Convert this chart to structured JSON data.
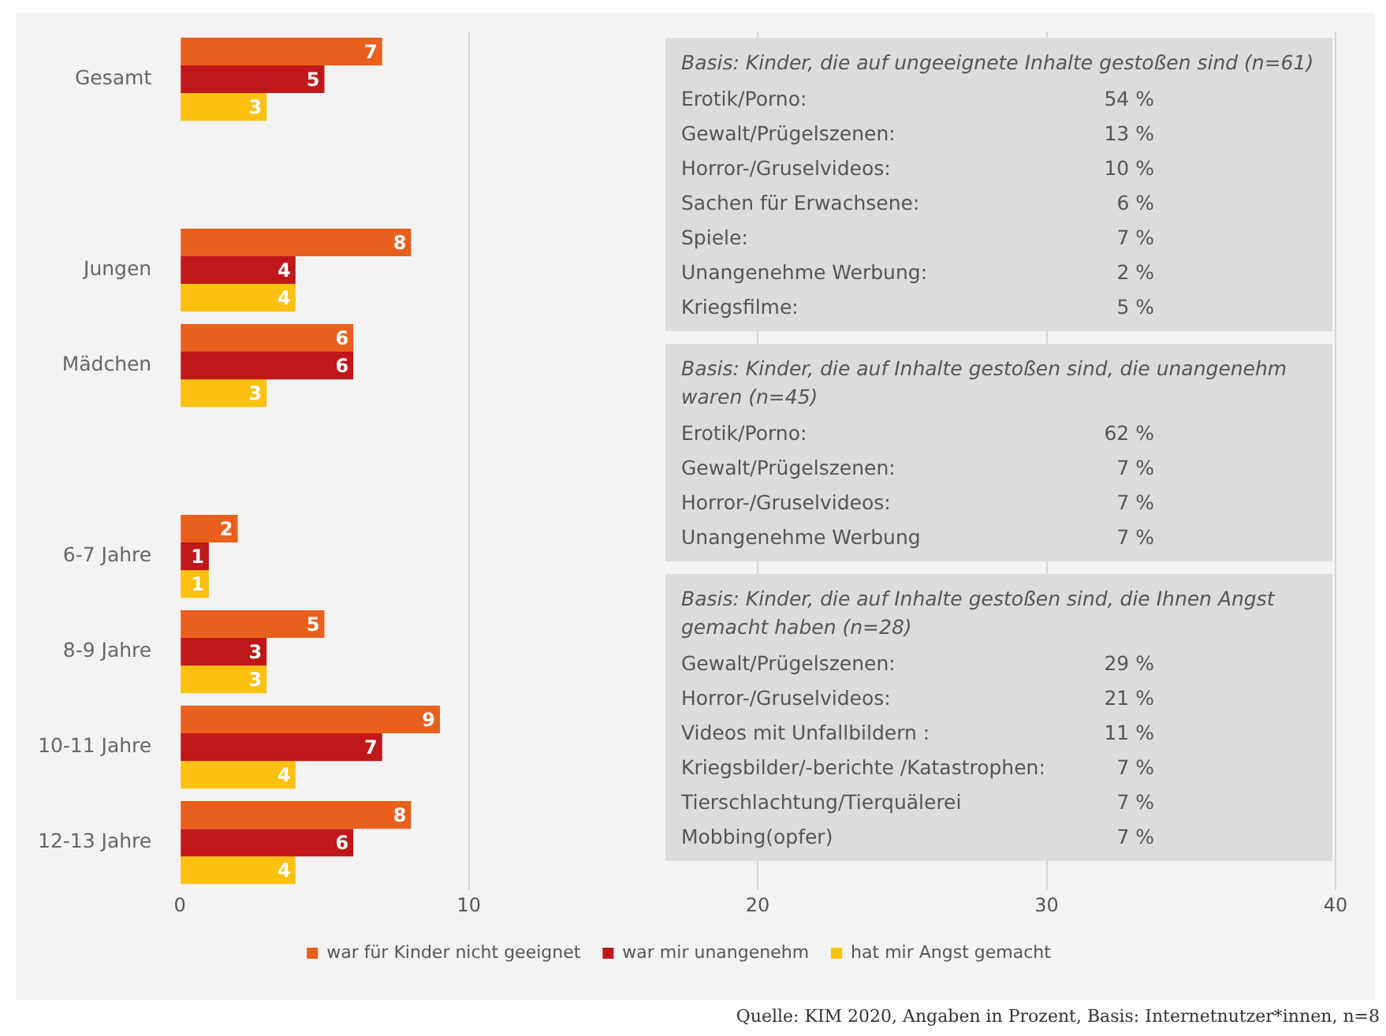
{
  "chart_data": {
    "type": "bar",
    "orientation": "horizontal",
    "categories": [
      "Gesamt",
      null,
      "Jungen",
      "Mädchen",
      null,
      "6-7 Jahre",
      "8-9 Jahre",
      "10-11 Jahre",
      "12-13 Jahre"
    ],
    "series": [
      {
        "name": "war für Kinder nicht geeignet",
        "color": "#e8601c",
        "values": [
          7,
          null,
          8,
          6,
          null,
          2,
          5,
          9,
          8
        ]
      },
      {
        "name": "war mir unangenehm",
        "color": "#c0171b",
        "values": [
          5,
          null,
          4,
          6,
          null,
          1,
          3,
          7,
          6
        ]
      },
      {
        "name": "hat mir Angst gemacht",
        "color": "#fcc10f",
        "values": [
          3,
          null,
          4,
          3,
          null,
          1,
          3,
          4,
          4
        ]
      }
    ],
    "xlim": [
      0,
      40
    ],
    "xticks": [
      0,
      10,
      20,
      30,
      40
    ],
    "grid": "x",
    "legend": "bottom",
    "data_labels": true,
    "annotations": [
      "Basis: Kinder, die auf ungeeignete Inhalte gestoßen sind (n=61)\nErotik/Porno:\t54 %\nGewalt/Prügelszenen:\t13 %\nHorror-/Gruselvideos:\t10 %\nSachen für Erwachsene:\t6 %\nSpiele:\t7 %\nUnangenehme Werbung:\t2 %\nKriegsfilme:\t5 %",
      "Basis: Kinder, die auf Inhalte gestoßen sind, die unangenehm waren (n=45)\nErotik/Porno:\t62 %\nGewalt/Prügelszenen:\t7 %\nHorror-/Gruselvideos:\t7 %\nUnangenehme Werbung\t7 %",
      "Basis: Kinder, die auf Inhalte gestoßen sind, die Ihnen Angst gemacht haben (n=28)\nGewalt/Prügelszenen:\t29 %\nHorror-/Gruselvideos:\t21 %\nVideos mit Unfallbildern :\t11 %\nKriegsbilder/-berichte /Katastrophen:\t7 %\nTierschlachtung/Tierquälerei\t7 %\nMobbing(opfer)\t7 %",
      "Quelle: KIM 2020, Angaben in Prozent, Basis: Internetnutzer*innen, n=8"
    ]
  }
}
